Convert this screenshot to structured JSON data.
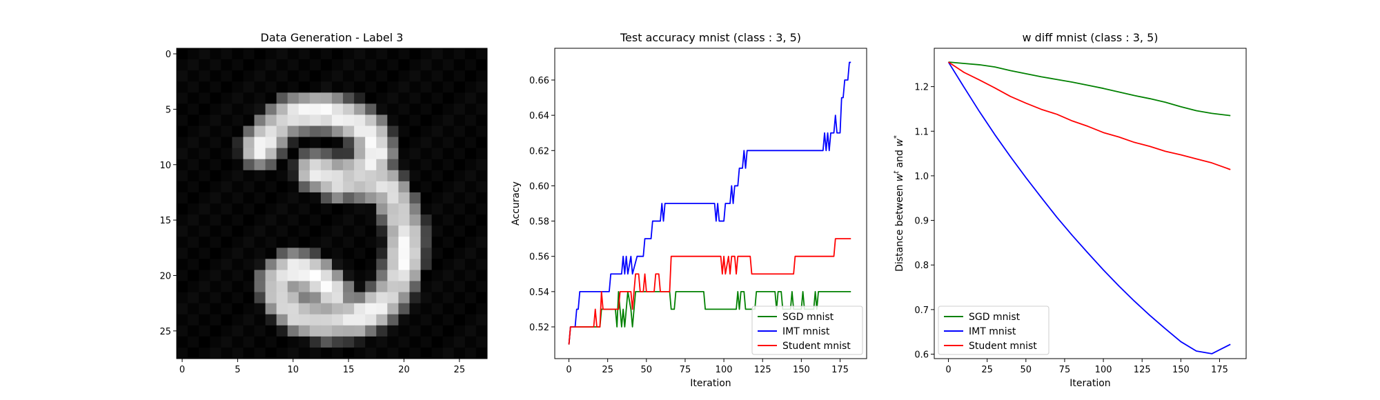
{
  "chart_data": [
    {
      "type": "heatmap",
      "title": "Data Generation - Label 3",
      "xlim": [
        -0.5,
        27.5
      ],
      "ylim": [
        27.5,
        -0.5
      ],
      "xticks": [
        0,
        5,
        10,
        15,
        20,
        25
      ],
      "yticks": [
        0,
        5,
        10,
        15,
        20,
        25
      ],
      "colormap": "gray",
      "strokes": [
        {
          "points": [
            [
              7,
              8.5
            ],
            [
              8.5,
              6.5
            ],
            [
              10,
              5.5
            ],
            [
              13,
              5.2
            ],
            [
              15.5,
              6
            ],
            [
              17,
              7
            ],
            [
              17.5,
              9
            ],
            [
              16.5,
              10.5
            ],
            [
              14,
              11.5
            ]
          ],
          "width": 2.1
        },
        {
          "points": [
            [
              12,
              10.5
            ],
            [
              14.5,
              11.2
            ],
            [
              17,
              11.6
            ],
            [
              18.5,
              12.2
            ],
            [
              19.5,
              14
            ],
            [
              20.2,
              16
            ],
            [
              20,
              19
            ],
            [
              19,
              21.5
            ],
            [
              17.5,
              23
            ],
            [
              15.5,
              24
            ],
            [
              13,
              24.2
            ],
            [
              10.5,
              23.5
            ],
            [
              9,
              22
            ],
            [
              8.5,
              20.5
            ],
            [
              10,
              19.5
            ],
            [
              12,
              20
            ],
            [
              13.5,
              21.5
            ]
          ],
          "width": 2.1
        }
      ]
    },
    {
      "type": "line",
      "title": "Test accuracy mnist (class : 3, 5)",
      "xlabel": "Iteration",
      "ylabel": "Accuracy",
      "xlim": [
        -9.15,
        192.15
      ],
      "ylim": [
        0.502,
        0.678
      ],
      "xticks": [
        0,
        25,
        50,
        75,
        100,
        125,
        150,
        175
      ],
      "yticks": [
        0.52,
        0.54,
        0.56,
        0.58,
        0.6,
        0.62,
        0.64,
        0.66
      ],
      "tick_format": 2,
      "legend_position": "lower-right",
      "series": [
        {
          "name": "SGD mnist",
          "color": "#008000",
          "points": [
            [
              0,
              0.51
            ],
            [
              1,
              0.52
            ],
            [
              20,
              0.52
            ],
            [
              21,
              0.53
            ],
            [
              30,
              0.53
            ],
            [
              31,
              0.52
            ],
            [
              32,
              0.54
            ],
            [
              33,
              0.53
            ],
            [
              34,
              0.52
            ],
            [
              35,
              0.53
            ],
            [
              36,
              0.52
            ],
            [
              37,
              0.53
            ],
            [
              38,
              0.54
            ],
            [
              40,
              0.53
            ],
            [
              41,
              0.52
            ],
            [
              42,
              0.53
            ],
            [
              43,
              0.54
            ],
            [
              65,
              0.54
            ],
            [
              66,
              0.53
            ],
            [
              68,
              0.53
            ],
            [
              69,
              0.54
            ],
            [
              87,
              0.54
            ],
            [
              88,
              0.53
            ],
            [
              108,
              0.53
            ],
            [
              109,
              0.54
            ],
            [
              110,
              0.53
            ],
            [
              111,
              0.54
            ],
            [
              113,
              0.54
            ],
            [
              114,
              0.53
            ],
            [
              120,
              0.53
            ],
            [
              121,
              0.54
            ],
            [
              133,
              0.54
            ],
            [
              134,
              0.53
            ],
            [
              135,
              0.54
            ],
            [
              137,
              0.54
            ],
            [
              138,
              0.53
            ],
            [
              143,
              0.53
            ],
            [
              144,
              0.54
            ],
            [
              145,
              0.53
            ],
            [
              150,
              0.53
            ],
            [
              151,
              0.54
            ],
            [
              152,
              0.53
            ],
            [
              158,
              0.53
            ],
            [
              159,
              0.54
            ],
            [
              160,
              0.53
            ],
            [
              161,
              0.54
            ],
            [
              182,
              0.54
            ]
          ]
        },
        {
          "name": "IMT mnist",
          "color": "#0000ff",
          "points": [
            [
              0,
              0.51
            ],
            [
              1,
              0.52
            ],
            [
              4,
              0.52
            ],
            [
              5,
              0.53
            ],
            [
              6,
              0.53
            ],
            [
              7,
              0.54
            ],
            [
              26,
              0.54
            ],
            [
              27,
              0.55
            ],
            [
              34,
              0.55
            ],
            [
              35,
              0.56
            ],
            [
              36,
              0.55
            ],
            [
              37,
              0.56
            ],
            [
              38,
              0.55
            ],
            [
              40,
              0.56
            ],
            [
              41,
              0.55
            ],
            [
              44,
              0.56
            ],
            [
              48,
              0.56
            ],
            [
              49,
              0.57
            ],
            [
              53,
              0.57
            ],
            [
              54,
              0.58
            ],
            [
              59,
              0.58
            ],
            [
              60,
              0.59
            ],
            [
              61,
              0.58
            ],
            [
              62,
              0.59
            ],
            [
              94,
              0.59
            ],
            [
              95,
              0.58
            ],
            [
              96,
              0.59
            ],
            [
              97,
              0.58
            ],
            [
              100,
              0.58
            ],
            [
              101,
              0.59
            ],
            [
              104,
              0.59
            ],
            [
              105,
              0.6
            ],
            [
              106,
              0.59
            ],
            [
              107,
              0.6
            ],
            [
              109,
              0.6
            ],
            [
              110,
              0.61
            ],
            [
              112,
              0.61
            ],
            [
              113,
              0.62
            ],
            [
              114,
              0.61
            ],
            [
              115,
              0.62
            ],
            [
              164,
              0.62
            ],
            [
              165,
              0.63
            ],
            [
              166,
              0.62
            ],
            [
              167,
              0.63
            ],
            [
              168,
              0.62
            ],
            [
              169,
              0.63
            ],
            [
              171,
              0.63
            ],
            [
              172,
              0.64
            ],
            [
              173,
              0.63
            ],
            [
              175,
              0.63
            ],
            [
              176,
              0.65
            ],
            [
              177,
              0.65
            ],
            [
              178,
              0.66
            ],
            [
              180,
              0.66
            ],
            [
              181,
              0.67
            ],
            [
              182,
              0.67
            ]
          ]
        },
        {
          "name": "Student mnist",
          "color": "#ff0000",
          "points": [
            [
              0,
              0.51
            ],
            [
              1,
              0.52
            ],
            [
              16,
              0.52
            ],
            [
              17,
              0.53
            ],
            [
              18,
              0.52
            ],
            [
              20,
              0.52
            ],
            [
              21,
              0.54
            ],
            [
              22,
              0.53
            ],
            [
              32,
              0.53
            ],
            [
              33,
              0.54
            ],
            [
              40,
              0.54
            ],
            [
              41,
              0.53
            ],
            [
              42,
              0.54
            ],
            [
              43,
              0.55
            ],
            [
              45,
              0.55
            ],
            [
              46,
              0.54
            ],
            [
              48,
              0.54
            ],
            [
              49,
              0.55
            ],
            [
              50,
              0.54
            ],
            [
              55,
              0.54
            ],
            [
              56,
              0.55
            ],
            [
              58,
              0.55
            ],
            [
              59,
              0.54
            ],
            [
              65,
              0.54
            ],
            [
              66,
              0.56
            ],
            [
              98,
              0.56
            ],
            [
              99,
              0.55
            ],
            [
              100,
              0.56
            ],
            [
              101,
              0.55
            ],
            [
              103,
              0.56
            ],
            [
              104,
              0.55
            ],
            [
              105,
              0.56
            ],
            [
              107,
              0.56
            ],
            [
              108,
              0.55
            ],
            [
              109,
              0.56
            ],
            [
              117,
              0.56
            ],
            [
              118,
              0.55
            ],
            [
              145,
              0.55
            ],
            [
              146,
              0.56
            ],
            [
              171,
              0.56
            ],
            [
              172,
              0.57
            ],
            [
              182,
              0.57
            ]
          ]
        }
      ]
    },
    {
      "type": "line",
      "title": "w diff mnist (class : 3, 5)",
      "xlabel": "Iteration",
      "ylabel": "Distance between w^t and w^*",
      "xlim": [
        -9.15,
        192.15
      ],
      "ylim": [
        0.59,
        1.286
      ],
      "xticks": [
        0,
        25,
        50,
        75,
        100,
        125,
        150,
        175
      ],
      "yticks": [
        0.6,
        0.7,
        0.8,
        0.9,
        1.0,
        1.1,
        1.2
      ],
      "tick_format": 1,
      "legend_position": "lower-left",
      "series": [
        {
          "name": "SGD mnist",
          "color": "#008000",
          "points": [
            [
              0,
              1.255
            ],
            [
              10,
              1.252
            ],
            [
              20,
              1.249
            ],
            [
              30,
              1.244
            ],
            [
              40,
              1.236
            ],
            [
              50,
              1.229
            ],
            [
              60,
              1.222
            ],
            [
              70,
              1.216
            ],
            [
              80,
              1.21
            ],
            [
              90,
              1.203
            ],
            [
              100,
              1.196
            ],
            [
              110,
              1.188
            ],
            [
              120,
              1.18
            ],
            [
              130,
              1.173
            ],
            [
              140,
              1.165
            ],
            [
              150,
              1.155
            ],
            [
              160,
              1.146
            ],
            [
              170,
              1.14
            ],
            [
              182,
              1.135
            ]
          ]
        },
        {
          "name": "IMT mnist",
          "color": "#0000ff",
          "points": [
            [
              0,
              1.255
            ],
            [
              10,
              1.199
            ],
            [
              20,
              1.144
            ],
            [
              30,
              1.092
            ],
            [
              40,
              1.043
            ],
            [
              50,
              0.996
            ],
            [
              60,
              0.951
            ],
            [
              70,
              0.907
            ],
            [
              80,
              0.866
            ],
            [
              90,
              0.827
            ],
            [
              100,
              0.789
            ],
            [
              110,
              0.753
            ],
            [
              120,
              0.719
            ],
            [
              130,
              0.687
            ],
            [
              140,
              0.657
            ],
            [
              150,
              0.628
            ],
            [
              160,
              0.607
            ],
            [
              170,
              0.601
            ],
            [
              182,
              0.622
            ]
          ]
        },
        {
          "name": "Student mnist",
          "color": "#ff0000",
          "points": [
            [
              0,
              1.255
            ],
            [
              10,
              1.232
            ],
            [
              20,
              1.215
            ],
            [
              30,
              1.197
            ],
            [
              40,
              1.178
            ],
            [
              50,
              1.163
            ],
            [
              60,
              1.149
            ],
            [
              70,
              1.138
            ],
            [
              80,
              1.123
            ],
            [
              90,
              1.111
            ],
            [
              100,
              1.097
            ],
            [
              110,
              1.087
            ],
            [
              120,
              1.075
            ],
            [
              130,
              1.066
            ],
            [
              140,
              1.055
            ],
            [
              150,
              1.047
            ],
            [
              160,
              1.038
            ],
            [
              170,
              1.029
            ],
            [
              182,
              1.014
            ]
          ]
        }
      ]
    }
  ]
}
